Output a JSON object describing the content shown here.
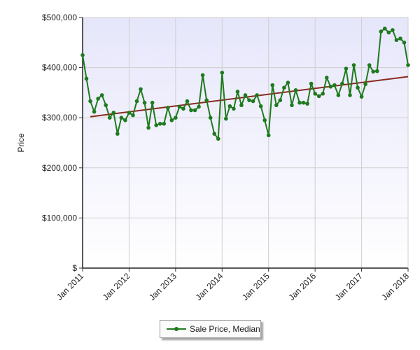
{
  "chart_data": {
    "type": "line",
    "ylabel": "Price",
    "ylim": [
      0,
      500000
    ],
    "y_tick_labels": [
      "$500,000",
      "$400,000",
      "$300,000",
      "$200,000",
      "$100,000",
      "$"
    ],
    "y_tick_values": [
      500000,
      400000,
      300000,
      200000,
      100000,
      0
    ],
    "x_tick_labels": [
      "Jan 2011",
      "Jan 2012",
      "Jan 2013",
      "Jan 2014",
      "Jan 2015",
      "Jan 2016",
      "Jan 2017",
      "Jan 2018"
    ],
    "x_tick_index": [
      0,
      12,
      24,
      36,
      48,
      60,
      72,
      84
    ],
    "grid": true,
    "legend_position": "bottom-center",
    "series": [
      {
        "name": "Sale Price, Median",
        "color": "#1e7a1e",
        "marker": "circle",
        "values": [
          425000,
          378000,
          333000,
          312000,
          338000,
          345000,
          325000,
          300000,
          310000,
          268000,
          300000,
          295000,
          310000,
          305000,
          333000,
          357000,
          330000,
          280000,
          330000,
          285000,
          288000,
          288000,
          320000,
          295000,
          300000,
          322000,
          318000,
          333000,
          315000,
          315000,
          322000,
          385000,
          335000,
          300000,
          268000,
          258000,
          390000,
          298000,
          323000,
          318000,
          352000,
          325000,
          345000,
          335000,
          333000,
          345000,
          323000,
          295000,
          265000,
          365000,
          325000,
          335000,
          360000,
          370000,
          325000,
          355000,
          330000,
          330000,
          328000,
          368000,
          348000,
          343000,
          348000,
          380000,
          362000,
          365000,
          345000,
          368000,
          398000,
          345000,
          405000,
          360000,
          342000,
          367000,
          405000,
          392000,
          393000,
          472000,
          478000,
          470000,
          475000,
          455000,
          458000,
          450000,
          405000
        ]
      },
      {
        "name": "Trend",
        "color": "#8b2a1e",
        "role": "trendline",
        "start_value": 302000,
        "end_value": 382000
      }
    ]
  }
}
